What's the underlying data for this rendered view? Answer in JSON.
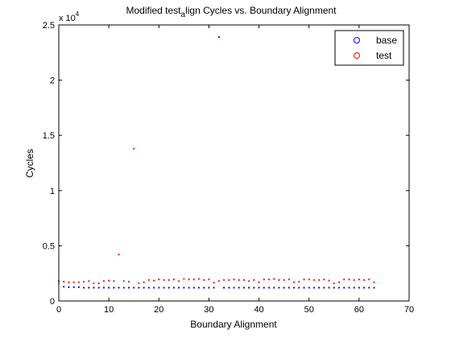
{
  "chart_data": {
    "type": "scatter",
    "title_main": "Modified test",
    "title_subscript": "a",
    "title_rest": "lign Cycles vs. Boundary Alignment",
    "xlabel": "Boundary Alignment",
    "ylabel": "Cycles",
    "y_exponent_base": "x 10",
    "y_exponent_power": "4",
    "xlim": [
      0,
      70
    ],
    "ylim": [
      0,
      25000
    ],
    "x_ticks": [
      0,
      10,
      20,
      30,
      40,
      50,
      60,
      70
    ],
    "x_tick_labels": [
      "0",
      "10",
      "20",
      "30",
      "40",
      "50",
      "60",
      "70"
    ],
    "y_ticks": [
      0,
      5000,
      10000,
      15000,
      20000,
      25000
    ],
    "y_tick_labels": [
      "0",
      "0.5",
      "1",
      "1.5",
      "2",
      "2.5"
    ],
    "grid": false,
    "legend_position": "top-right",
    "series": [
      {
        "name": "base",
        "color": "#0000ff",
        "x": [
          0,
          1,
          2,
          3,
          4,
          5,
          6,
          7,
          8,
          9,
          10,
          11,
          12,
          13,
          14,
          15,
          16,
          17,
          18,
          19,
          20,
          21,
          22,
          23,
          24,
          25,
          26,
          27,
          28,
          29,
          30,
          31,
          32,
          33,
          34,
          35,
          36,
          37,
          38,
          39,
          40,
          41,
          42,
          43,
          44,
          45,
          46,
          47,
          48,
          49,
          50,
          51,
          52,
          53,
          54,
          55,
          56,
          57,
          58,
          59,
          60,
          61,
          62,
          63
        ],
        "y": [
          1800,
          1300,
          1250,
          1250,
          1250,
          1200,
          1200,
          1200,
          1200,
          1200,
          1200,
          1200,
          1200,
          1200,
          1200,
          1200,
          1200,
          1200,
          1200,
          1200,
          1200,
          1200,
          1200,
          1200,
          1200,
          1200,
          1200,
          1200,
          1200,
          1200,
          1200,
          1200,
          23900,
          1200,
          1200,
          1200,
          1200,
          1200,
          1200,
          1200,
          1200,
          1200,
          1200,
          1200,
          1200,
          1200,
          1200,
          1200,
          1200,
          1200,
          1200,
          1200,
          1200,
          1200,
          1200,
          1200,
          1200,
          1200,
          1200,
          1200,
          1200,
          1200,
          1200,
          1200
        ]
      },
      {
        "name": "test",
        "color": "#ff0000",
        "x": [
          0,
          1,
          2,
          3,
          4,
          5,
          6,
          7,
          8,
          9,
          10,
          11,
          12,
          13,
          14,
          15,
          16,
          17,
          18,
          19,
          20,
          21,
          22,
          23,
          24,
          25,
          26,
          27,
          28,
          29,
          30,
          31,
          32,
          33,
          34,
          35,
          36,
          37,
          38,
          39,
          40,
          41,
          42,
          43,
          44,
          45,
          46,
          47,
          48,
          49,
          50,
          51,
          52,
          53,
          54,
          55,
          56,
          57,
          58,
          59,
          60,
          61,
          62,
          63
        ],
        "y": [
          1600,
          1750,
          1700,
          1700,
          1700,
          1750,
          1800,
          1600,
          1600,
          1800,
          1850,
          1800,
          4200,
          1800,
          1750,
          13800,
          1600,
          1700,
          1900,
          1850,
          1950,
          1900,
          1900,
          1950,
          1800,
          2000,
          1950,
          1950,
          2000,
          1900,
          1950,
          1650,
          1800,
          1900,
          1900,
          1950,
          1900,
          1900,
          1800,
          1900,
          1700,
          1950,
          1950,
          2000,
          1900,
          1900,
          1950,
          1700,
          1750,
          1950,
          1950,
          1900,
          1900,
          1950,
          1850,
          1600,
          1700,
          1950,
          1950,
          1900,
          1950,
          1900,
          1950,
          1700
        ]
      }
    ]
  }
}
